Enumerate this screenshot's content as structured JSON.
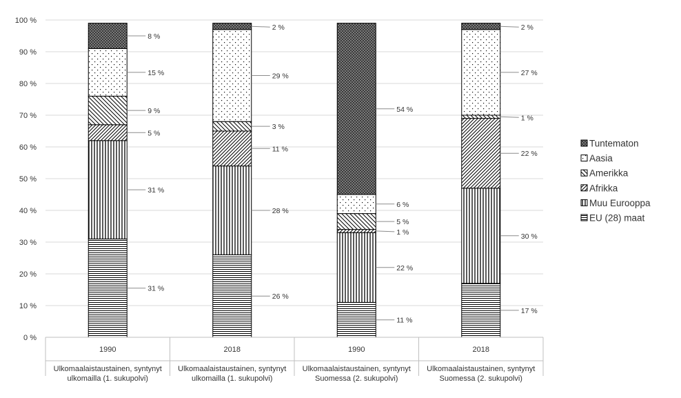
{
  "chart_data": {
    "type": "bar",
    "stacked": true,
    "categories": [
      {
        "year": "1990",
        "group": "Ulkomaalaistaustainen, syntynyt ulkomailla (1. sukupolvi)",
        "group_lines": [
          "Ulkomaalaistaustainen, syntynyt",
          "ulkomailla (1. sukupolvi)"
        ]
      },
      {
        "year": "2018",
        "group": "Ulkomaalaistaustainen, syntynyt ulkomailla (1. sukupolvi)",
        "group_lines": [
          "Ulkomaalaistaustainen, syntynyt",
          "ulkomailla (1. sukupolvi)"
        ]
      },
      {
        "year": "1990",
        "group": "Ulkomaalaistaustainen, syntynyt Suomessa (2. sukupolvi)",
        "group_lines": [
          "Ulkomaalaistaustainen, syntynyt",
          "Suomessa (2. sukupolvi)"
        ]
      },
      {
        "year": "2018",
        "group": "Ulkomaalaistaustainen, syntynyt Suomessa (2. sukupolvi)",
        "group_lines": [
          "Ulkomaalaistaustainen, syntynyt",
          "Suomessa (2. sukupolvi)"
        ]
      }
    ],
    "series": [
      {
        "name": "EU (28) maat",
        "values": [
          31,
          26,
          11,
          17
        ],
        "labels": [
          "31 %",
          "26 %",
          "11 %",
          "17 %"
        ],
        "pattern": "hlines"
      },
      {
        "name": "Muu Eurooppa",
        "values": [
          31,
          28,
          22,
          30
        ],
        "labels": [
          "31 %",
          "28 %",
          "22 %",
          "30 %"
        ],
        "pattern": "vlines"
      },
      {
        "name": "Afrikka",
        "values": [
          5,
          11,
          1,
          22
        ],
        "labels": [
          "5 %",
          "11 %",
          "1 %",
          "22 %"
        ],
        "pattern": "diag-fwd"
      },
      {
        "name": "Amerikka",
        "values": [
          9,
          3,
          5,
          1
        ],
        "labels": [
          "9 %",
          "3 %",
          "5 %",
          "1 %"
        ],
        "pattern": "diag-back"
      },
      {
        "name": "Aasia",
        "values": [
          15,
          29,
          6,
          27
        ],
        "labels": [
          "15 %",
          "29 %",
          "6 %",
          "27 %"
        ],
        "pattern": "dots"
      },
      {
        "name": "Tuntematon",
        "values": [
          8,
          2,
          54,
          2
        ],
        "labels": [
          "8 %",
          "2 %",
          "54 %",
          "2 %"
        ],
        "pattern": "checker"
      }
    ],
    "legend_order": [
      "Tuntematon",
      "Aasia",
      "Amerikka",
      "Afrikka",
      "Muu Eurooppa",
      "EU (28) maat"
    ],
    "y_ticks": [
      "0 %",
      "10 %",
      "20 %",
      "30 %",
      "40 %",
      "50 %",
      "60 %",
      "70 %",
      "80 %",
      "90 %",
      "100 %"
    ],
    "ylim": [
      0,
      100
    ],
    "grid": true,
    "legend_position": "right"
  }
}
